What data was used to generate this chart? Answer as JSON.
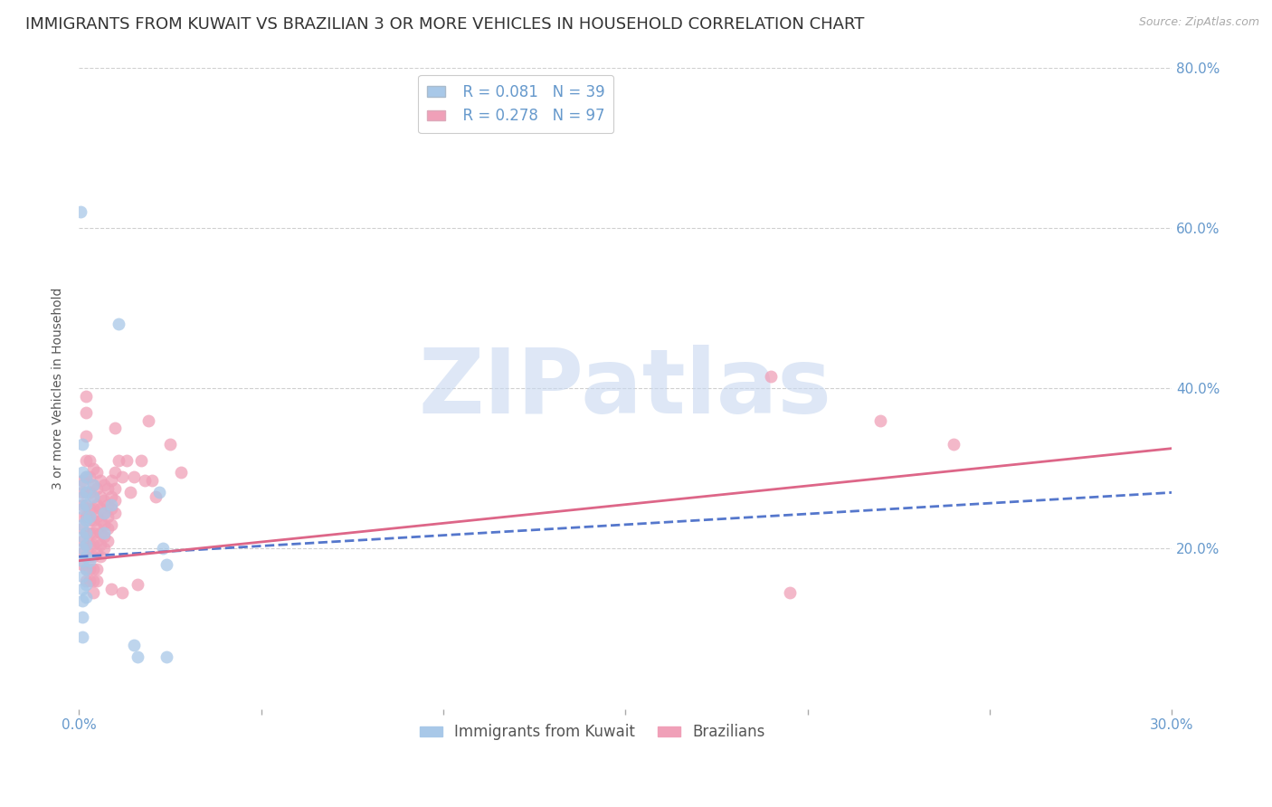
{
  "title": "IMMIGRANTS FROM KUWAIT VS BRAZILIAN 3 OR MORE VEHICLES IN HOUSEHOLD CORRELATION CHART",
  "source": "Source: ZipAtlas.com",
  "ylabel": "3 or more Vehicles in Household",
  "xlim": [
    0.0,
    0.3
  ],
  "ylim": [
    0.0,
    0.8
  ],
  "xticks": [
    0.0,
    0.05,
    0.1,
    0.15,
    0.2,
    0.25,
    0.3
  ],
  "yticks_right": [
    0.2,
    0.4,
    0.6,
    0.8
  ],
  "yticklabels_right": [
    "20.0%",
    "40.0%",
    "60.0%",
    "80.0%"
  ],
  "grid_color": "#d0d0d0",
  "background_color": "#ffffff",
  "kuwait_color": "#a8c8e8",
  "brazil_color": "#f0a0b8",
  "kuwait_line_color": "#5577cc",
  "brazil_line_color": "#dd6688",
  "tick_color": "#6699cc",
  "R_kuwait": 0.081,
  "N_kuwait": 39,
  "R_brazil": 0.278,
  "N_brazil": 97,
  "legend_label_kuwait": "Immigrants from Kuwait",
  "legend_label_brazil": "Brazilians",
  "watermark": "ZIPatlas",
  "watermark_color": "#c8d8f0",
  "title_fontsize": 13,
  "axis_label_fontsize": 10,
  "tick_fontsize": 11,
  "legend_fontsize": 12,
  "kuwait_scatter": [
    [
      0.0005,
      0.62
    ],
    [
      0.001,
      0.33
    ],
    [
      0.001,
      0.295
    ],
    [
      0.001,
      0.28
    ],
    [
      0.001,
      0.265
    ],
    [
      0.001,
      0.25
    ],
    [
      0.001,
      0.23
    ],
    [
      0.001,
      0.215
    ],
    [
      0.001,
      0.2
    ],
    [
      0.001,
      0.185
    ],
    [
      0.001,
      0.165
    ],
    [
      0.001,
      0.15
    ],
    [
      0.001,
      0.135
    ],
    [
      0.001,
      0.115
    ],
    [
      0.001,
      0.09
    ],
    [
      0.002,
      0.29
    ],
    [
      0.002,
      0.27
    ],
    [
      0.002,
      0.255
    ],
    [
      0.002,
      0.235
    ],
    [
      0.002,
      0.22
    ],
    [
      0.002,
      0.205
    ],
    [
      0.002,
      0.19
    ],
    [
      0.002,
      0.175
    ],
    [
      0.002,
      0.155
    ],
    [
      0.002,
      0.14
    ],
    [
      0.003,
      0.24
    ],
    [
      0.003,
      0.185
    ],
    [
      0.004,
      0.28
    ],
    [
      0.004,
      0.265
    ],
    [
      0.007,
      0.245
    ],
    [
      0.007,
      0.22
    ],
    [
      0.009,
      0.255
    ],
    [
      0.011,
      0.48
    ],
    [
      0.015,
      0.08
    ],
    [
      0.016,
      0.065
    ],
    [
      0.022,
      0.27
    ],
    [
      0.023,
      0.2
    ],
    [
      0.024,
      0.18
    ],
    [
      0.024,
      0.065
    ]
  ],
  "brazil_scatter": [
    [
      0.001,
      0.285
    ],
    [
      0.001,
      0.27
    ],
    [
      0.001,
      0.255
    ],
    [
      0.001,
      0.24
    ],
    [
      0.001,
      0.225
    ],
    [
      0.001,
      0.21
    ],
    [
      0.001,
      0.195
    ],
    [
      0.001,
      0.18
    ],
    [
      0.002,
      0.39
    ],
    [
      0.002,
      0.37
    ],
    [
      0.002,
      0.34
    ],
    [
      0.002,
      0.31
    ],
    [
      0.002,
      0.29
    ],
    [
      0.002,
      0.27
    ],
    [
      0.002,
      0.255
    ],
    [
      0.002,
      0.24
    ],
    [
      0.002,
      0.22
    ],
    [
      0.002,
      0.205
    ],
    [
      0.002,
      0.19
    ],
    [
      0.002,
      0.175
    ],
    [
      0.002,
      0.16
    ],
    [
      0.003,
      0.31
    ],
    [
      0.003,
      0.29
    ],
    [
      0.003,
      0.27
    ],
    [
      0.003,
      0.25
    ],
    [
      0.003,
      0.235
    ],
    [
      0.003,
      0.22
    ],
    [
      0.003,
      0.205
    ],
    [
      0.003,
      0.19
    ],
    [
      0.003,
      0.175
    ],
    [
      0.003,
      0.16
    ],
    [
      0.004,
      0.3
    ],
    [
      0.004,
      0.28
    ],
    [
      0.004,
      0.265
    ],
    [
      0.004,
      0.25
    ],
    [
      0.004,
      0.235
    ],
    [
      0.004,
      0.22
    ],
    [
      0.004,
      0.205
    ],
    [
      0.004,
      0.19
    ],
    [
      0.004,
      0.175
    ],
    [
      0.004,
      0.16
    ],
    [
      0.004,
      0.145
    ],
    [
      0.005,
      0.295
    ],
    [
      0.005,
      0.275
    ],
    [
      0.005,
      0.255
    ],
    [
      0.005,
      0.24
    ],
    [
      0.005,
      0.225
    ],
    [
      0.005,
      0.21
    ],
    [
      0.005,
      0.195
    ],
    [
      0.005,
      0.175
    ],
    [
      0.005,
      0.16
    ],
    [
      0.006,
      0.285
    ],
    [
      0.006,
      0.265
    ],
    [
      0.006,
      0.25
    ],
    [
      0.006,
      0.235
    ],
    [
      0.006,
      0.22
    ],
    [
      0.006,
      0.205
    ],
    [
      0.006,
      0.19
    ],
    [
      0.007,
      0.28
    ],
    [
      0.007,
      0.26
    ],
    [
      0.007,
      0.245
    ],
    [
      0.007,
      0.23
    ],
    [
      0.007,
      0.215
    ],
    [
      0.007,
      0.2
    ],
    [
      0.008,
      0.275
    ],
    [
      0.008,
      0.255
    ],
    [
      0.008,
      0.24
    ],
    [
      0.008,
      0.225
    ],
    [
      0.008,
      0.21
    ],
    [
      0.009,
      0.285
    ],
    [
      0.009,
      0.265
    ],
    [
      0.009,
      0.25
    ],
    [
      0.009,
      0.23
    ],
    [
      0.009,
      0.15
    ],
    [
      0.01,
      0.295
    ],
    [
      0.01,
      0.275
    ],
    [
      0.01,
      0.26
    ],
    [
      0.01,
      0.245
    ],
    [
      0.01,
      0.35
    ],
    [
      0.011,
      0.31
    ],
    [
      0.012,
      0.29
    ],
    [
      0.012,
      0.145
    ],
    [
      0.013,
      0.31
    ],
    [
      0.014,
      0.27
    ],
    [
      0.015,
      0.29
    ],
    [
      0.016,
      0.155
    ],
    [
      0.017,
      0.31
    ],
    [
      0.018,
      0.285
    ],
    [
      0.019,
      0.36
    ],
    [
      0.02,
      0.285
    ],
    [
      0.021,
      0.265
    ],
    [
      0.025,
      0.33
    ],
    [
      0.028,
      0.295
    ],
    [
      0.19,
      0.415
    ],
    [
      0.195,
      0.145
    ],
    [
      0.22,
      0.36
    ],
    [
      0.24,
      0.33
    ]
  ],
  "kuwait_trend": [
    0.0,
    0.3,
    0.19,
    0.27
  ],
  "brazil_trend": [
    0.0,
    0.3,
    0.185,
    0.325
  ]
}
